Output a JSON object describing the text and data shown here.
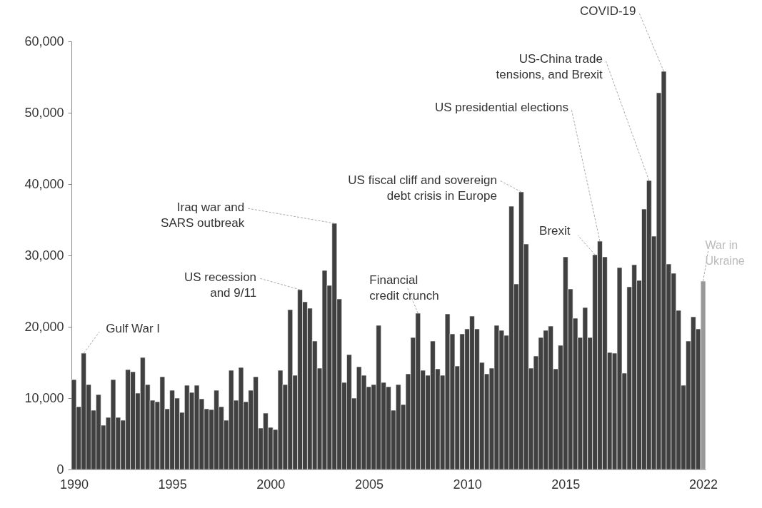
{
  "chart_data": {
    "type": "bar",
    "x": [
      1990,
      1990.25,
      1990.5,
      1990.75,
      1991,
      1991.25,
      1991.5,
      1991.75,
      1992,
      1992.25,
      1992.5,
      1992.75,
      1993,
      1993.25,
      1993.5,
      1993.75,
      1994,
      1994.25,
      1994.5,
      1994.75,
      1995,
      1995.25,
      1995.5,
      1995.75,
      1996,
      1996.25,
      1996.5,
      1996.75,
      1997,
      1997.25,
      1997.5,
      1997.75,
      1998,
      1998.25,
      1998.5,
      1998.75,
      1999,
      1999.25,
      1999.5,
      1999.75,
      2000,
      2000.25,
      2000.5,
      2000.75,
      2001,
      2001.25,
      2001.5,
      2001.75,
      2002,
      2002.25,
      2002.5,
      2002.75,
      2003,
      2003.25,
      2003.5,
      2003.75,
      2004,
      2004.25,
      2004.5,
      2004.75,
      2005,
      2005.25,
      2005.5,
      2005.75,
      2006,
      2006.25,
      2006.5,
      2006.75,
      2007,
      2007.25,
      2007.5,
      2007.75,
      2008,
      2008.25,
      2008.5,
      2008.75,
      2009,
      2009.25,
      2009.5,
      2009.75,
      2010,
      2010.25,
      2010.5,
      2010.75,
      2011,
      2011.25,
      2011.5,
      2011.75,
      2012,
      2012.25,
      2012.5,
      2012.75,
      2013,
      2013.25,
      2013.5,
      2013.75,
      2014,
      2014.25,
      2014.5,
      2014.75,
      2015,
      2015.25,
      2015.5,
      2015.75,
      2016,
      2016.25,
      2016.5,
      2016.75,
      2017,
      2017.25,
      2017.5,
      2017.75,
      2018,
      2018.25,
      2018.5,
      2018.75,
      2019,
      2019.25,
      2019.5,
      2019.75,
      2020,
      2020.25,
      2020.5,
      2020.75,
      2021,
      2021.25,
      2021.5,
      2021.75,
      2022
    ],
    "values": [
      12600,
      8800,
      16300,
      11900,
      8300,
      10500,
      6200,
      7300,
      12600,
      7300,
      6900,
      14000,
      13700,
      10700,
      15700,
      11900,
      9700,
      9500,
      13000,
      8500,
      11100,
      10000,
      8000,
      11800,
      10800,
      11800,
      9900,
      8500,
      8400,
      11100,
      8800,
      6900,
      13900,
      9700,
      14300,
      9500,
      11100,
      13000,
      5800,
      7900,
      5900,
      5600,
      13900,
      11900,
      22400,
      13200,
      25200,
      23500,
      22600,
      18000,
      14200,
      27900,
      25800,
      34500,
      23900,
      12200,
      16100,
      10000,
      14400,
      13200,
      11600,
      11900,
      20200,
      12200,
      11600,
      8300,
      11900,
      9100,
      13400,
      18500,
      21900,
      13900,
      13200,
      18000,
      14100,
      13200,
      21800,
      19000,
      14500,
      19000,
      19700,
      21500,
      19700,
      15000,
      13400,
      14200,
      20200,
      19500,
      18800,
      36900,
      26000,
      38900,
      31600,
      14200,
      15900,
      18500,
      19500,
      20100,
      14100,
      17400,
      29800,
      25300,
      21200,
      18500,
      22700,
      18500,
      30100,
      32000,
      29800,
      16400,
      16300,
      28300,
      13500,
      25600,
      28700,
      26500,
      36500,
      40500,
      32700,
      52800,
      55800,
      28800,
      27500,
      22300,
      11800,
      18000,
      21400,
      19700,
      26400
    ],
    "colors": [
      "#404040",
      "#404040",
      "#404040",
      "#404040",
      "#404040",
      "#404040",
      "#404040",
      "#404040",
      "#404040",
      "#404040",
      "#404040",
      "#404040",
      "#404040",
      "#404040",
      "#404040",
      "#404040",
      "#404040",
      "#404040",
      "#404040",
      "#404040",
      "#404040",
      "#404040",
      "#404040",
      "#404040",
      "#404040",
      "#404040",
      "#404040",
      "#404040",
      "#404040",
      "#404040",
      "#404040",
      "#404040",
      "#404040",
      "#404040",
      "#404040",
      "#404040",
      "#404040",
      "#404040",
      "#404040",
      "#404040",
      "#404040",
      "#404040",
      "#404040",
      "#404040",
      "#404040",
      "#404040",
      "#404040",
      "#404040",
      "#404040",
      "#404040",
      "#404040",
      "#404040",
      "#404040",
      "#404040",
      "#404040",
      "#404040",
      "#404040",
      "#404040",
      "#404040",
      "#404040",
      "#404040",
      "#404040",
      "#404040",
      "#404040",
      "#404040",
      "#404040",
      "#404040",
      "#404040",
      "#404040",
      "#404040",
      "#404040",
      "#404040",
      "#404040",
      "#404040",
      "#404040",
      "#404040",
      "#404040",
      "#404040",
      "#404040",
      "#404040",
      "#404040",
      "#404040",
      "#404040",
      "#404040",
      "#404040",
      "#404040",
      "#404040",
      "#404040",
      "#404040",
      "#404040",
      "#404040",
      "#404040",
      "#404040",
      "#404040",
      "#404040",
      "#404040",
      "#404040",
      "#404040",
      "#404040",
      "#404040",
      "#404040",
      "#404040",
      "#404040",
      "#404040",
      "#404040",
      "#404040",
      "#404040",
      "#404040",
      "#404040",
      "#404040",
      "#404040",
      "#404040",
      "#404040",
      "#404040",
      "#404040",
      "#404040",
      "#404040",
      "#404040",
      "#404040",
      "#404040",
      "#404040",
      "#404040",
      "#404040",
      "#404040",
      "#404040",
      "#404040",
      "#404040",
      "#404040",
      "#999999"
    ],
    "xlim": [
      1989.875,
      2022.125
    ],
    "xticks": [
      1990,
      1995,
      2000,
      2005,
      2010,
      2015,
      2022
    ],
    "ylim": [
      0,
      60000
    ],
    "yticks": [
      {
        "value": 0,
        "label": "0"
      },
      {
        "value": 10000,
        "label": "10,000"
      },
      {
        "value": 20000,
        "label": "20,000"
      },
      {
        "value": 30000,
        "label": "30,000"
      },
      {
        "value": 40000,
        "label": "40,000"
      },
      {
        "value": 50000,
        "label": "50,000"
      },
      {
        "value": 60000,
        "label": "60,000"
      }
    ],
    "grid": false,
    "annotations": [
      {
        "text": "Gulf War I",
        "x": 1990.5,
        "y": 16300
      },
      {
        "text": "US recession\nand 9/11",
        "x": 2001.5,
        "y": 25200
      },
      {
        "text": "Iraq war and\nSARS outbreak",
        "x": 2003.25,
        "y": 34500
      },
      {
        "text": "Financial\ncredit crunch",
        "x": 2007.5,
        "y": 21900
      },
      {
        "text": "US fiscal cliff and sovereign\ndebt crisis in Europe",
        "x": 2012.75,
        "y": 38900
      },
      {
        "text": "Brexit",
        "x": 2016.5,
        "y": 30100
      },
      {
        "text": "US presidential elections",
        "x": 2016.75,
        "y": 32000
      },
      {
        "text": "US-China trade\ntensions, and Brexit",
        "x": 2019.25,
        "y": 40500
      },
      {
        "text": "COVID-19",
        "x": 2020,
        "y": 55800
      },
      {
        "text": "War in\nUkraine",
        "x": 2022,
        "y": 26400
      }
    ]
  }
}
